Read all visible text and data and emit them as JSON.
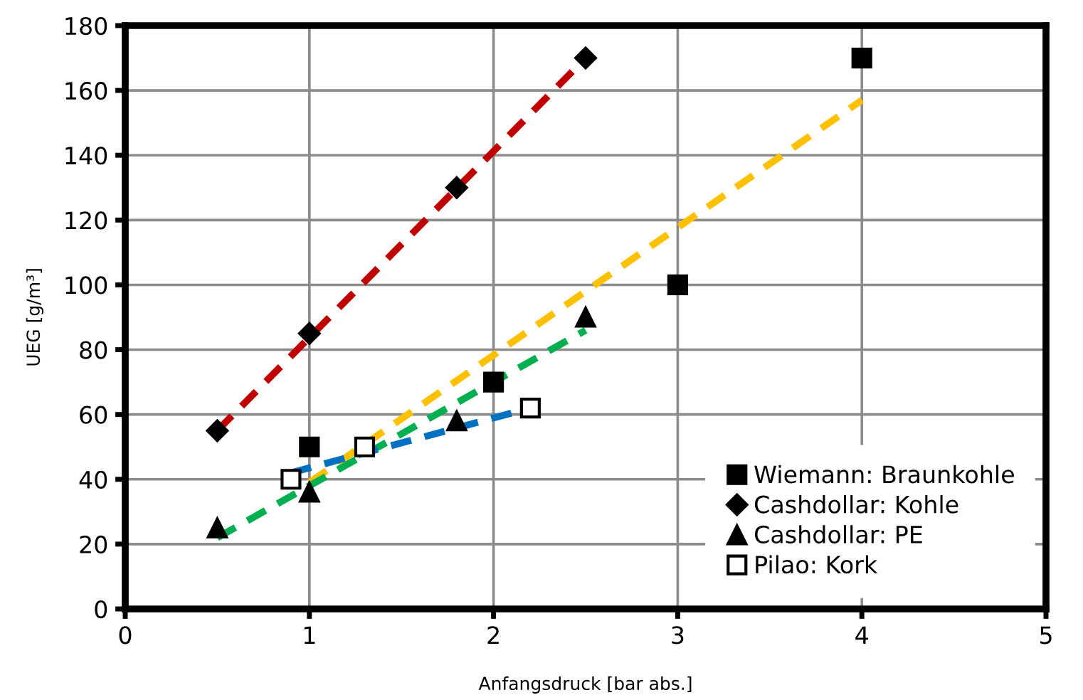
{
  "chart_data": {
    "type": "scatter",
    "xlabel": "Anfangsdruck [bar abs.]",
    "ylabel": "UEG [g/m³]",
    "xlim": [
      0,
      5
    ],
    "xticks": [
      0,
      1,
      2,
      3,
      4,
      5
    ],
    "ylim": [
      0,
      180
    ],
    "yticks": [
      0,
      20,
      40,
      60,
      80,
      100,
      120,
      140,
      160,
      180
    ],
    "grid": true,
    "legend": "bottom right",
    "series": [
      {
        "type": "line",
        "line_style": "dashed",
        "marker": "none",
        "color": "#ffc000",
        "x": [
          1,
          4
        ],
        "values": [
          39,
          157
        ]
      },
      {
        "type": "line",
        "line_style": "dashed",
        "marker": "none",
        "color": "#c00000",
        "x": [
          0.5,
          2.5
        ],
        "values": [
          55,
          170
        ]
      },
      {
        "type": "line",
        "line_style": "dashed",
        "marker": "none",
        "color": "#00b050",
        "x": [
          0.5,
          2.5
        ],
        "values": [
          22,
          86
        ]
      },
      {
        "type": "line",
        "line_style": "dashed",
        "marker": "none",
        "color": "#0070c0",
        "x": [
          0.9,
          2.2
        ],
        "values": [
          42,
          62
        ]
      },
      {
        "name": "Wiemann: Braunkohle",
        "marker": "square",
        "color": "#000000",
        "x": [
          1,
          2,
          3,
          4
        ],
        "values": [
          50,
          70,
          100,
          170
        ]
      },
      {
        "name": "Cashdollar: Kohle",
        "marker": "diamond",
        "color": "#000000",
        "x": [
          0.5,
          1,
          1.8,
          2.5
        ],
        "values": [
          55,
          85,
          130,
          170
        ]
      },
      {
        "name": "Cashdollar: PE",
        "marker": "triangle",
        "color": "#000000",
        "x": [
          0.5,
          1,
          1.8,
          2.5
        ],
        "values": [
          25,
          36,
          58,
          90
        ]
      },
      {
        "name": "Pilao: Kork",
        "marker": "square",
        "color": "#ffffff",
        "x": [
          0.9,
          1.3,
          2.2
        ],
        "values": [
          40,
          50,
          62
        ]
      }
    ]
  }
}
